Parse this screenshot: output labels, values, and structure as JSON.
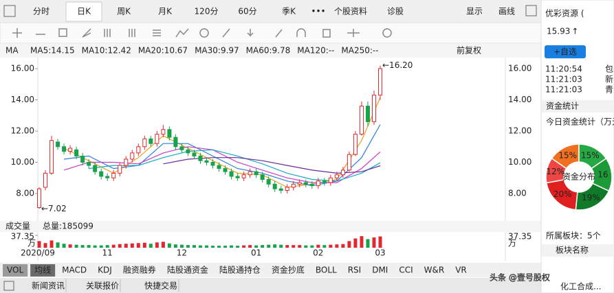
{
  "toolbar": {
    "tabs": [
      "分时",
      "日K",
      "周K",
      "月K",
      "120分",
      "60分",
      "季K",
      "•••",
      "个股资料",
      "诊股"
    ],
    "right": [
      "显示",
      "画线"
    ]
  },
  "chart_data": {
    "type": "candlestick",
    "ma_label": "MA",
    "adjust": "前复权",
    "ma_legend": [
      {
        "text": "MA5:14.15",
        "color": "#e8a01c"
      },
      {
        "text": "MA10:12.42",
        "color": "#2a7ed8"
      },
      {
        "text": "MA20:10.67",
        "color": "#c83ac8"
      },
      {
        "text": "MA30:9.97",
        "color": "#17aac0"
      },
      {
        "text": "MA60:9.78",
        "color": "#6a2a9a"
      },
      {
        "text": "MA120:--",
        "color": "#2a9a3a"
      },
      {
        "text": "MA250:--",
        "color": "#d82a2a"
      }
    ],
    "ylim": [
      6.33,
      16.66
    ],
    "yticks": [
      {
        "value": 8,
        "label": "8.00"
      },
      {
        "value": 10,
        "label": "10.00"
      },
      {
        "value": 12,
        "label": "12.00"
      },
      {
        "value": 14,
        "label": "14.00"
      },
      {
        "value": 16,
        "label": "16.00"
      }
    ],
    "up_color": "#e0282e",
    "down_color": "#16a34a",
    "categories": [
      "2020/09",
      null,
      null,
      null,
      null,
      null,
      null,
      null,
      null,
      null,
      null,
      "11",
      null,
      null,
      null,
      null,
      null,
      null,
      null,
      null,
      null,
      null,
      null,
      "12",
      null,
      null,
      null,
      null,
      null,
      null,
      null,
      null,
      null,
      null,
      null,
      "01",
      null,
      null,
      null,
      null,
      null,
      null,
      null,
      null,
      null,
      "02",
      null,
      null,
      null,
      null,
      null,
      null,
      null,
      null,
      null,
      "03"
    ],
    "open": [
      7.1,
      8.4,
      9.3,
      11.3,
      11.0,
      10.7,
      10.8,
      10.4,
      10.0,
      9.8,
      9.4,
      9.1,
      9.0,
      9.3,
      9.8,
      10.2,
      10.6,
      11.0,
      11.5,
      11.2,
      11.8,
      12.1,
      11.6,
      11.0,
      10.8,
      10.6,
      10.4,
      10.1,
      10.0,
      9.8,
      9.6,
      9.4,
      9.1,
      9.0,
      9.2,
      9.4,
      9.2,
      8.9,
      8.6,
      8.3,
      8.2,
      8.4,
      8.6,
      8.7,
      8.6,
      8.5,
      8.8,
      8.7,
      9.0,
      9.2,
      9.5,
      10.5,
      11.8,
      13.6,
      12.6,
      14.3
    ],
    "close": [
      8.3,
      9.3,
      11.4,
      11.0,
      10.7,
      10.9,
      10.4,
      10.0,
      9.8,
      9.4,
      9.1,
      9.0,
      9.3,
      9.8,
      10.2,
      10.6,
      11.0,
      11.5,
      11.2,
      11.8,
      12.1,
      11.6,
      11.0,
      10.8,
      10.6,
      10.4,
      10.1,
      10.0,
      9.8,
      9.6,
      9.4,
      9.1,
      9.0,
      9.2,
      9.4,
      9.2,
      8.9,
      8.6,
      8.3,
      8.2,
      8.4,
      8.6,
      8.7,
      8.6,
      8.5,
      8.8,
      8.7,
      9.0,
      9.2,
      9.5,
      10.5,
      11.8,
      13.6,
      12.6,
      14.3,
      16.0
    ],
    "high": [
      8.4,
      9.5,
      11.7,
      11.5,
      11.2,
      11.1,
      11.0,
      10.6,
      10.2,
      10.0,
      9.6,
      9.3,
      9.5,
      10.0,
      10.4,
      10.8,
      11.2,
      11.7,
      11.7,
      12.0,
      12.4,
      12.3,
      11.8,
      11.2,
      11.0,
      10.8,
      10.6,
      10.3,
      10.2,
      10.0,
      9.8,
      9.6,
      9.3,
      9.4,
      9.6,
      9.6,
      9.4,
      9.1,
      8.8,
      8.5,
      8.6,
      8.8,
      8.9,
      8.9,
      8.8,
      9.0,
      9.0,
      9.2,
      9.4,
      9.7,
      10.7,
      12.0,
      13.9,
      13.9,
      14.6,
      16.2
    ],
    "low": [
      7.02,
      8.2,
      9.2,
      10.8,
      10.5,
      10.5,
      10.2,
      9.8,
      9.6,
      9.2,
      8.9,
      8.8,
      8.8,
      9.1,
      9.6,
      10.0,
      10.4,
      10.8,
      11.0,
      11.0,
      11.6,
      11.4,
      10.8,
      10.6,
      10.4,
      10.2,
      9.9,
      9.8,
      9.6,
      9.4,
      9.2,
      8.9,
      8.8,
      8.8,
      9.0,
      9.0,
      8.7,
      8.4,
      8.1,
      8.0,
      8.0,
      8.2,
      8.4,
      8.4,
      8.3,
      8.3,
      8.5,
      8.5,
      8.8,
      9.0,
      9.4,
      10.4,
      11.7,
      12.3,
      12.4,
      14.0
    ],
    "moving_averages": [
      {
        "name": "MA5",
        "color": "#e8a01c",
        "x": [
          4,
          8,
          12,
          16,
          20,
          24,
          28,
          32,
          36,
          40,
          44,
          48,
          52,
          55
        ],
        "values": [
          10.9,
          10.1,
          9.3,
          10.3,
          11.7,
          10.9,
          10.1,
          9.3,
          9.2,
          8.4,
          8.6,
          8.9,
          11.4,
          14.15
        ]
      },
      {
        "name": "MA10",
        "color": "#2a7ed8",
        "x": [
          4,
          8,
          12,
          16,
          20,
          24,
          28,
          32,
          36,
          40,
          44,
          48,
          52,
          55
        ],
        "values": [
          10.2,
          10.4,
          9.6,
          9.8,
          11.2,
          11.2,
          10.4,
          9.6,
          9.3,
          8.8,
          8.5,
          8.8,
          10.3,
          12.42
        ]
      },
      {
        "name": "MA20",
        "color": "#c83ac8",
        "x": [
          4,
          8,
          12,
          16,
          20,
          24,
          28,
          32,
          36,
          40,
          44,
          48,
          52,
          55
        ],
        "values": [
          9.5,
          10.0,
          10.0,
          9.9,
          10.6,
          11.0,
          10.8,
          10.0,
          9.5,
          9.0,
          8.7,
          8.7,
          9.6,
          10.67
        ]
      },
      {
        "name": "MA30",
        "color": "#17aac0",
        "x": [
          8,
          12,
          16,
          20,
          24,
          28,
          32,
          36,
          40,
          44,
          48,
          52,
          55
        ],
        "values": [
          9.6,
          9.8,
          9.8,
          10.3,
          10.7,
          10.8,
          10.4,
          9.9,
          9.3,
          8.9,
          8.8,
          9.3,
          9.97
        ]
      },
      {
        "name": "MA60",
        "color": "#6a2a9a",
        "x": [
          20,
          24,
          28,
          32,
          36,
          40,
          44,
          48,
          52,
          55
        ],
        "values": [
          9.9,
          10.2,
          10.3,
          10.3,
          10.1,
          9.8,
          9.5,
          9.3,
          9.4,
          9.78
        ]
      }
    ],
    "annotations": {
      "high": "←16.20",
      "low": "←7.02"
    },
    "volume": {
      "title": "成交量",
      "total": "总量:185099",
      "unit": "万",
      "ylim": [
        0,
        37.35
      ],
      "yticks": [
        {
          "value": 37.35,
          "label": "37.35"
        }
      ],
      "values": [
        20,
        14,
        22,
        16,
        12,
        10,
        9,
        8,
        8,
        7,
        7,
        8,
        9,
        11,
        12,
        13,
        14,
        15,
        12,
        16,
        18,
        13,
        10,
        9,
        8,
        8,
        7,
        7,
        6,
        6,
        6,
        7,
        6,
        7,
        8,
        7,
        8,
        9,
        10,
        9,
        8,
        8,
        8,
        7,
        7,
        9,
        8,
        9,
        10,
        11,
        20,
        28,
        35,
        26,
        31,
        34
      ]
    }
  },
  "indicator_tabs": [
    "VOL",
    "均线",
    "MACD",
    "KDJ",
    "融资融券",
    "陆股通资金",
    "陆股通持仓",
    "资金抄底",
    "BOLL",
    "RSI",
    "DMI",
    "CCI",
    "W&R",
    "VR"
  ],
  "bottom_tabs": [
    "新闻资讯",
    "关联报价",
    "快捷交易"
  ],
  "quote": {
    "name": "优彩资源 (",
    "price": "15.93",
    "arrow": "↑",
    "watch": "+自选",
    "trades": [
      {
        "time": "11:20:54",
        "tag": "包"
      },
      {
        "time": "11:21:03",
        "tag": "新"
      },
      {
        "time": "11:21:03",
        "tag": "青"
      }
    ],
    "fund_title": "资金统计",
    "fund_subtitle": "今日资金统计（万元",
    "fund_center": "资金分布",
    "fund_slices": [
      {
        "value": 15,
        "label": "15%",
        "color": "#f07020"
      },
      {
        "value": 15,
        "label": "15%",
        "color": "#26a844"
      },
      {
        "value": 16,
        "label": "16",
        "color": "#1c9a38"
      },
      {
        "value": 19,
        "label": "19%",
        "color": "#0f7a28"
      },
      {
        "value": 20,
        "label": "20%",
        "color": "#e02020"
      },
      {
        "value": 12,
        "label": "12%",
        "color": "#f04545"
      }
    ],
    "sector_title": "所属板块：5个",
    "sector_header": "板块名称",
    "sector_first": "化工合成..."
  },
  "watermark": "头条 @壹号股权"
}
